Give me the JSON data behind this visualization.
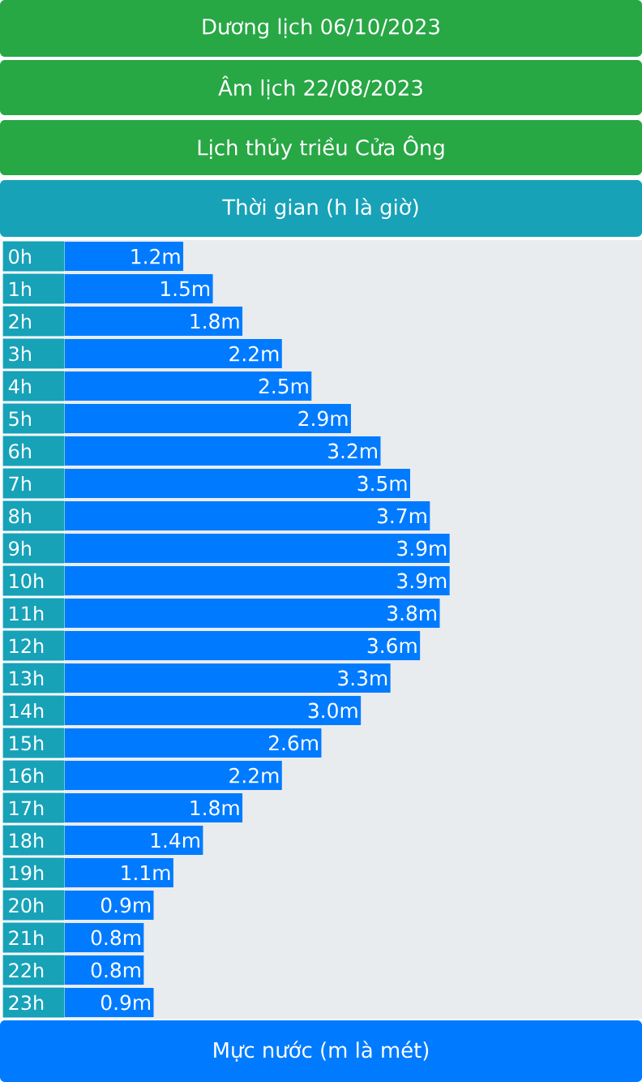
{
  "chart_data": {
    "type": "bar",
    "orientation": "horizontal",
    "title": "Dương lịch 06/10/2023",
    "subtitle": "Âm lịch 22/08/2023",
    "annotations": [
      "Lịch thủy triều Cửa Ông"
    ],
    "ylabel": "Thời gian (h là giờ)",
    "xlabel": "Mực nước (m là mét)",
    "color": "#007bff",
    "categories": [
      "0h",
      "1h",
      "2h",
      "3h",
      "4h",
      "5h",
      "6h",
      "7h",
      "8h",
      "9h",
      "10h",
      "11h",
      "12h",
      "13h",
      "14h",
      "15h",
      "16h",
      "17h",
      "18h",
      "19h",
      "20h",
      "21h",
      "22h",
      "23h"
    ],
    "values": [
      1.2,
      1.5,
      1.8,
      2.2,
      2.5,
      2.9,
      3.2,
      3.5,
      3.7,
      3.9,
      3.9,
      3.8,
      3.6,
      3.3,
      3.0,
      2.6,
      2.2,
      1.8,
      1.4,
      1.1,
      0.9,
      0.8,
      0.8,
      0.9
    ],
    "value_labels": [
      "1.2m",
      "1.5m",
      "1.8m",
      "2.2m",
      "2.5m",
      "2.9m",
      "3.2m",
      "3.5m",
      "3.7m",
      "3.9m",
      "3.9m",
      "3.8m",
      "3.6m",
      "3.3m",
      "3.0m",
      "2.6m",
      "2.2m",
      "1.8m",
      "1.4m",
      "1.1m",
      "0.9m",
      "0.8m",
      "0.8m",
      "0.9m"
    ]
  }
}
